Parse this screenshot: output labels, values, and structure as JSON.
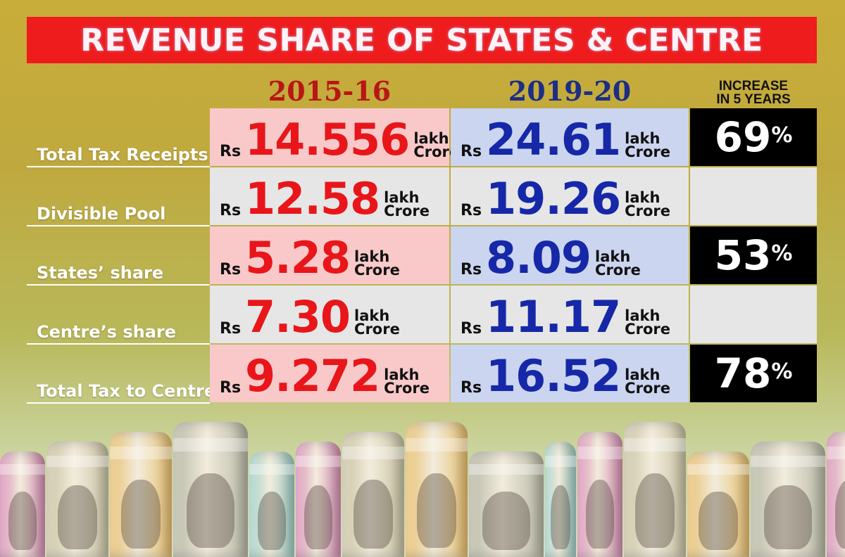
{
  "title": "REVENUE SHARE OF STATES & CENTRE",
  "chart_data": {
    "type": "table",
    "columns": [
      "2015-16",
      "2019-20",
      "INCREASE IN 5 YEARS"
    ],
    "increase_header": [
      "INCREASE",
      "IN 5 YEARS"
    ],
    "currency_prefix": "Rs",
    "unit": [
      "lakh",
      "Crore"
    ],
    "rows": [
      {
        "label": "Total Tax Receipts",
        "y2015": "14.556",
        "y2019": "24.61",
        "increase": "69",
        "increase_sign": "%"
      },
      {
        "label": "Divisible Pool",
        "y2015": "12.58",
        "y2019": "19.26",
        "increase": "",
        "increase_sign": ""
      },
      {
        "label": "States’ share",
        "y2015": "5.28",
        "y2019": "8.09",
        "increase": "53",
        "increase_sign": "%"
      },
      {
        "label": "Centre’s share",
        "y2015": "7.30",
        "y2019": "11.17",
        "increase": "",
        "increase_sign": ""
      },
      {
        "label": "Total Tax to Centre",
        "y2015": "9.272",
        "y2019": "16.52",
        "increase": "78",
        "increase_sign": "%"
      }
    ]
  },
  "colors": {
    "title_bg": "#ee1c1c",
    "year1": "#e8161a",
    "year2": "#1628a8",
    "pink_cell": "#f9c9c9",
    "blue_cell": "#cbd5ef",
    "grey_cell": "#e6e6e6",
    "increase_cell": "#000000"
  },
  "background_image": "rolled-rupee-banknotes"
}
